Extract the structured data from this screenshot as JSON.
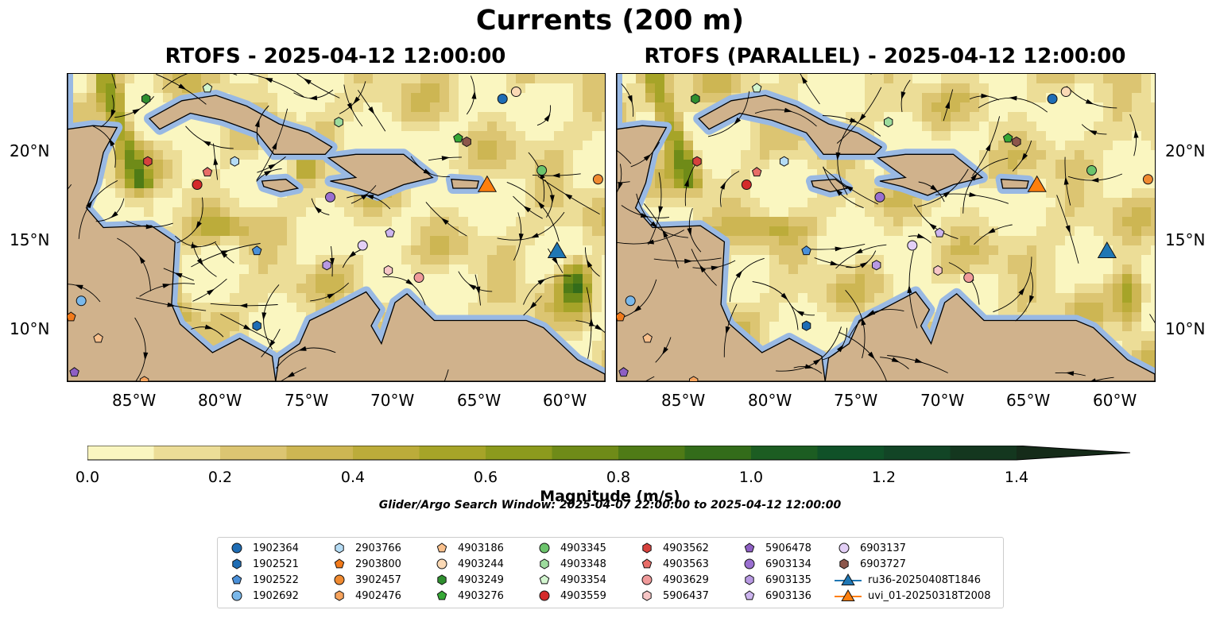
{
  "figure": {
    "title": "Currents (200 m)",
    "panels": [
      {
        "id": "left",
        "title": "RTOFS - 2025-04-12 12:00:00"
      },
      {
        "id": "right",
        "title": "RTOFS (PARALLEL) - 2025-04-12 12:00:00"
      }
    ],
    "lat_labels": [
      "20°N",
      "15°N",
      "10°N"
    ],
    "lon_labels": [
      "85°W",
      "80°W",
      "75°W",
      "70°W",
      "65°W",
      "60°W"
    ],
    "extent": {
      "lon": [
        -89.7,
        -58.2
      ],
      "lat": [
        7.2,
        24.4
      ]
    },
    "colors": {
      "ocean": "#99b9e3",
      "land": "#d0b28c",
      "current_low": "#fbf6c2",
      "current_high": "#102b1a"
    }
  },
  "colorbar": {
    "label": "Magnitude (m/s)",
    "ticks": [
      "0.0",
      "0.2",
      "0.4",
      "0.6",
      "0.8",
      "1.0",
      "1.2",
      "1.4"
    ],
    "min": 0.0,
    "max": 1.5,
    "step": 0.1,
    "colors": [
      "#faf6c0",
      "#ecdd97",
      "#dcc572",
      "#cdb653",
      "#bcac3a",
      "#a6a428",
      "#8c9a1d",
      "#6f8b18",
      "#4f7b16",
      "#336c1a",
      "#1c5d22",
      "#105128",
      "#124526",
      "#14371f",
      "#152b19"
    ]
  },
  "search_window": "Glider/Argo Search Window: 2025-04-07 22:00:00 to 2025-04-12 12:00:00",
  "legend": [
    {
      "label": "1902364",
      "marker": "circle",
      "color": "#1f6db5"
    },
    {
      "label": "1902521",
      "marker": "hexagon",
      "color": "#1f6db5"
    },
    {
      "label": "1902522",
      "marker": "pentagon",
      "color": "#4a90d9"
    },
    {
      "label": "1902692",
      "marker": "circle",
      "color": "#7ab8ea"
    },
    {
      "label": "2903766",
      "marker": "hexagon",
      "color": "#b5dcf5"
    },
    {
      "label": "2903800",
      "marker": "pentagon",
      "color": "#f27a1a"
    },
    {
      "label": "3902457",
      "marker": "circle",
      "color": "#f08a30"
    },
    {
      "label": "4902476",
      "marker": "hexagon",
      "color": "#f7a35c"
    },
    {
      "label": "4903186",
      "marker": "pentagon",
      "color": "#f9c08c"
    },
    {
      "label": "4903244",
      "marker": "circle",
      "color": "#fbd9b5"
    },
    {
      "label": "4903249",
      "marker": "hexagon",
      "color": "#2f8f2f"
    },
    {
      "label": "4903276",
      "marker": "pentagon",
      "color": "#36a836"
    },
    {
      "label": "4903345",
      "marker": "circle",
      "color": "#6cc46c"
    },
    {
      "label": "4903348",
      "marker": "hexagon",
      "color": "#9ddc9d"
    },
    {
      "label": "4903354",
      "marker": "pentagon",
      "color": "#d2f5cf"
    },
    {
      "label": "4903559",
      "marker": "circle",
      "color": "#d42a2a"
    },
    {
      "label": "4903562",
      "marker": "hexagon",
      "color": "#d6413d"
    },
    {
      "label": "4903563",
      "marker": "pentagon",
      "color": "#e86d68"
    },
    {
      "label": "4903629",
      "marker": "circle",
      "color": "#f09a9a"
    },
    {
      "label": "5906437",
      "marker": "hexagon",
      "color": "#f7c6c6"
    },
    {
      "label": "5906478",
      "marker": "pentagon",
      "color": "#8e5fc4"
    },
    {
      "label": "6903134",
      "marker": "circle",
      "color": "#9a6fd0"
    },
    {
      "label": "6903135",
      "marker": "hexagon",
      "color": "#b899e3"
    },
    {
      "label": "6903136",
      "marker": "pentagon",
      "color": "#cdb5ef"
    },
    {
      "label": "6903137",
      "marker": "circle",
      "color": "#e3cff6"
    },
    {
      "label": "6903727",
      "marker": "hexagon",
      "color": "#8c564b"
    },
    {
      "label": "ru36-20250408T1846",
      "marker": "triangle",
      "color": "#1f77b4"
    },
    {
      "label": "uvi_01-20250318T2008",
      "marker": "triangle",
      "color": "#ff7f0e"
    }
  ],
  "platform_positions": [
    {
      "id": "1902364",
      "lon": -64.2,
      "lat": 23.0
    },
    {
      "id": "1902521",
      "lon": -78.6,
      "lat": 10.3
    },
    {
      "id": "1902522",
      "lon": -78.6,
      "lat": 14.5
    },
    {
      "id": "1902692",
      "lon": -88.9,
      "lat": 11.7
    },
    {
      "id": "2903766",
      "lon": -79.9,
      "lat": 19.5
    },
    {
      "id": "2903800",
      "lon": -89.5,
      "lat": 10.8
    },
    {
      "id": "3902457",
      "lon": -58.6,
      "lat": 18.5
    },
    {
      "id": "4902476",
      "lon": -85.2,
      "lat": 7.2
    },
    {
      "id": "4903186",
      "lon": -87.9,
      "lat": 9.6
    },
    {
      "id": "4903244",
      "lon": -63.4,
      "lat": 23.4
    },
    {
      "id": "4903249",
      "lon": -85.1,
      "lat": 23.0
    },
    {
      "id": "4903276",
      "lon": -66.8,
      "lat": 20.8
    },
    {
      "id": "4903345",
      "lon": -61.9,
      "lat": 19.0
    },
    {
      "id": "4903348",
      "lon": -73.8,
      "lat": 21.7
    },
    {
      "id": "4903354",
      "lon": -81.5,
      "lat": 23.6
    },
    {
      "id": "4903559",
      "lon": -82.1,
      "lat": 18.2
    },
    {
      "id": "4903562",
      "lon": -85.0,
      "lat": 19.5
    },
    {
      "id": "4903563",
      "lon": -81.5,
      "lat": 18.9
    },
    {
      "id": "4903629",
      "lon": -69.1,
      "lat": 13.0
    },
    {
      "id": "5906437",
      "lon": -70.9,
      "lat": 13.4
    },
    {
      "id": "5906478",
      "lon": -89.3,
      "lat": 7.7
    },
    {
      "id": "6903134",
      "lon": -74.3,
      "lat": 17.5
    },
    {
      "id": "6903135",
      "lon": -74.5,
      "lat": 13.7
    },
    {
      "id": "6903136",
      "lon": -70.8,
      "lat": 15.5
    },
    {
      "id": "6903137",
      "lon": -72.4,
      "lat": 14.8
    },
    {
      "id": "6903727",
      "lon": -66.3,
      "lat": 20.6
    },
    {
      "id": "ru36-20250408T1846",
      "lon": -61.0,
      "lat": 14.4
    },
    {
      "id": "uvi_01-20250318T2008",
      "lon": -65.1,
      "lat": 18.1
    }
  ]
}
